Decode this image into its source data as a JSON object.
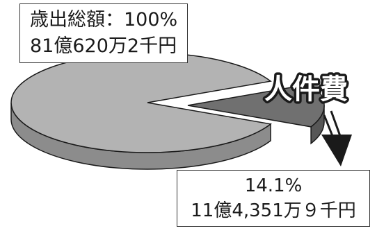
{
  "total_box": {
    "line1": "歳出総額：100%",
    "line2": "81億620万2千円"
  },
  "callout_label": "人件費",
  "share_box": {
    "line1": "14.1%",
    "line2": "11億4,351万９千円"
  },
  "chart_data": {
    "type": "pie",
    "style": "3d-exploded",
    "slices": [
      {
        "label": "",
        "percent": 85.9,
        "color": "#b3b3b3",
        "side_color": "#8c8c8c"
      },
      {
        "label": "人件費",
        "percent": 14.1,
        "amount": "11億4,351万９千円",
        "color": "#707070",
        "side_color": "#575757",
        "exploded": true
      }
    ],
    "total": {
      "percent": 100,
      "amount": "81億620万2千円"
    }
  }
}
